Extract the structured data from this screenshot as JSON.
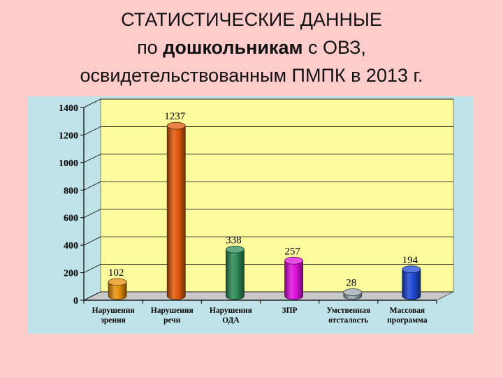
{
  "title": {
    "line1": "СТАТИСТИЧЕСКИЕ ДАННЫЕ",
    "line2_pre": "по ",
    "line2_bold": "дошкольникам",
    "line2_post": " с ОВЗ,",
    "line3": "освидетельствованным ПМПК в 2013 г."
  },
  "chart_data": {
    "type": "bar",
    "categories": [
      [
        "Нарушения",
        "зрения"
      ],
      [
        "Нарушения",
        "речи"
      ],
      [
        "Нарушения",
        "ОДА"
      ],
      [
        "ЗПР"
      ],
      [
        "Умственная",
        "отсталость"
      ],
      [
        "Массовая",
        "программа"
      ]
    ],
    "values": [
      102,
      1237,
      338,
      257,
      28,
      194
    ],
    "colors": [
      "#e8900c",
      "#e05a0a",
      "#2e8b57",
      "#dd11dd",
      "#9aa7ad",
      "#1f49d6"
    ],
    "ylim": [
      0,
      1400
    ],
    "yticks": [
      0,
      200,
      400,
      600,
      800,
      1000,
      1200,
      1400
    ],
    "wall_color": "#fbfb9e",
    "grid": true,
    "xlabel": "",
    "ylabel": ""
  }
}
